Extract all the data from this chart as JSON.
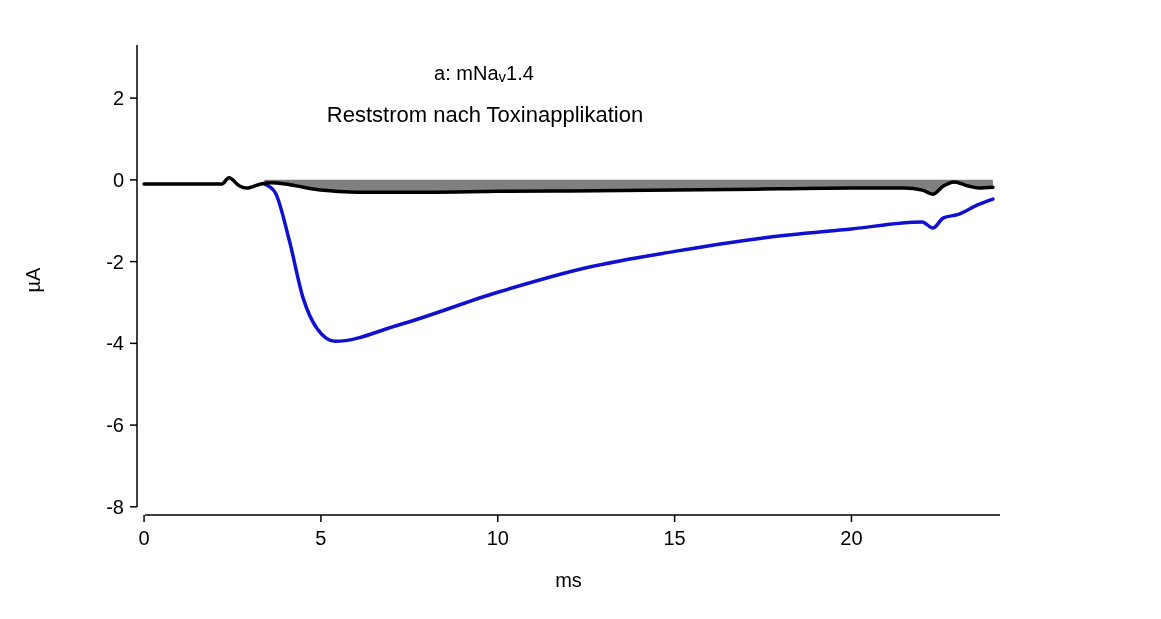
{
  "chart_data": {
    "type": "line",
    "xlabel": "ms",
    "ylabel": "µA",
    "annotations": [
      "a: mNa$_{v}$1.4",
      "Reststrom nach Toxinapplikation"
    ],
    "xlim": [
      -0.2,
      24.2
    ],
    "ylim": [
      -8.2,
      3.3
    ],
    "xticks": [
      0,
      5,
      10,
      15,
      20
    ],
    "yticks": [
      -8,
      -6,
      -4,
      -2,
      0,
      2
    ],
    "grid": false,
    "marker": "none",
    "line_style": "solid",
    "series": [
      {
        "type": "area",
        "color": "#808080",
        "x": [
          3.4,
          3.6,
          4.0,
          4.5,
          5.0,
          6,
          8,
          10,
          12,
          15,
          18,
          20,
          21.5,
          22,
          22.3,
          22.6,
          22.9,
          23.3,
          23.6,
          24
        ],
        "values": [
          -0.1,
          -0.07,
          -0.1,
          -0.18,
          -0.25,
          -0.3,
          -0.3,
          -0.28,
          -0.27,
          -0.25,
          -0.22,
          -0.2,
          -0.2,
          -0.25,
          -0.35,
          -0.15,
          -0.05,
          -0.15,
          -0.2,
          -0.18
        ]
      },
      {
        "color": "#1010d0",
        "x": [
          3.4,
          3.7,
          4.1,
          4.5,
          4.9,
          5.4,
          7.2,
          10,
          12.5,
          15,
          17.5,
          20,
          22,
          22.3,
          22.6,
          23,
          23.6,
          24
        ],
        "values": [
          -0.1,
          -0.3,
          -1.46,
          -2.9,
          -3.65,
          -3.95,
          -3.55,
          -2.75,
          -2.15,
          -1.75,
          -1.42,
          -1.2,
          -1.03,
          -1.18,
          -0.93,
          -0.85,
          -0.6,
          -0.47
        ]
      },
      {
        "color": "#000000",
        "x": [
          0,
          2.2,
          2.4,
          2.7,
          2.9,
          3.3,
          3.6,
          4.0,
          4.5,
          5.0,
          6,
          8,
          10,
          12,
          15,
          18,
          20,
          21.5,
          22,
          22.3,
          22.6,
          22.9,
          23.3,
          23.6,
          24
        ],
        "values": [
          -0.1,
          -0.1,
          0.05,
          -0.15,
          -0.2,
          -0.1,
          -0.07,
          -0.1,
          -0.18,
          -0.25,
          -0.3,
          -0.3,
          -0.28,
          -0.27,
          -0.25,
          -0.22,
          -0.2,
          -0.2,
          -0.25,
          -0.35,
          -0.15,
          -0.05,
          -0.15,
          -0.2,
          -0.18
        ]
      }
    ]
  }
}
